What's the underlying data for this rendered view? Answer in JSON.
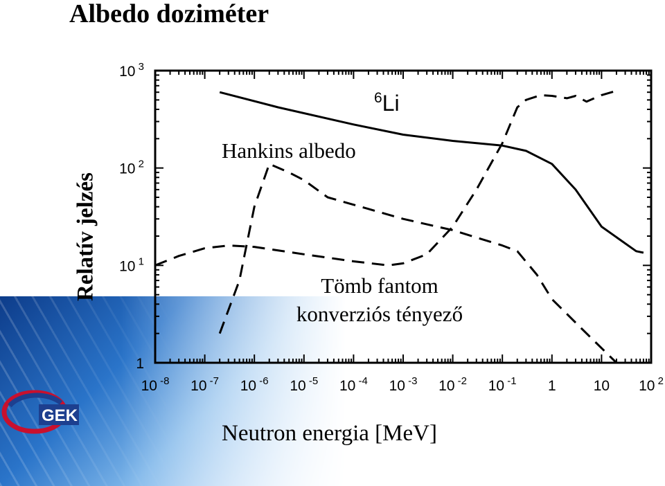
{
  "slide": {
    "title": "Albedo doziméter"
  },
  "logo": {
    "text": "GEK"
  },
  "chart_data": {
    "type": "line",
    "title": "",
    "xlabel": "Neutron energia [MeV]",
    "ylabel": "Relatív jelzés",
    "x_scale": "log",
    "y_scale": "log",
    "xlim": [
      1e-08,
      100
    ],
    "ylim": [
      1,
      1000
    ],
    "grid": false,
    "x_ticks": [
      {
        "value": 1e-08,
        "base": "10",
        "exp": "-8"
      },
      {
        "value": 1e-07,
        "base": "10",
        "exp": "-7"
      },
      {
        "value": 1e-06,
        "base": "10",
        "exp": "-6"
      },
      {
        "value": 1e-05,
        "base": "10",
        "exp": "-5"
      },
      {
        "value": 0.0001,
        "base": "10",
        "exp": "-4"
      },
      {
        "value": 0.001,
        "base": "10",
        "exp": "-3"
      },
      {
        "value": 0.01,
        "base": "10",
        "exp": "-2"
      },
      {
        "value": 0.1,
        "base": "10",
        "exp": "-1"
      },
      {
        "value": 1,
        "base": "1",
        "exp": ""
      },
      {
        "value": 10,
        "base": "10",
        "exp": ""
      },
      {
        "value": 100,
        "base": "10",
        "exp": "2"
      }
    ],
    "y_ticks": [
      {
        "value": 1,
        "base": "1",
        "exp": ""
      },
      {
        "value": 10,
        "base": "10",
        "exp": "1"
      },
      {
        "value": 100,
        "base": "10",
        "exp": "2"
      },
      {
        "value": 1000,
        "base": "10",
        "exp": "3"
      }
    ],
    "series": [
      {
        "style": "solid",
        "x": [
          2e-07,
          3e-06,
          0.0001,
          0.001,
          0.01,
          0.1,
          0.3,
          1,
          3,
          10,
          50,
          70
        ],
        "y": [
          600,
          420,
          280,
          220,
          190,
          170,
          150,
          110,
          60,
          25,
          14,
          13.5
        ]
      },
      {
        "style": "dashed",
        "x": [
          1e-08,
          3e-08,
          1e-07,
          3e-07,
          1e-06,
          1e-05,
          0.0001,
          0.0005,
          0.001,
          0.003,
          0.01,
          0.03,
          0.1,
          0.2,
          0.3,
          0.6,
          1,
          2,
          3,
          5,
          10,
          20
        ],
        "y": [
          10,
          12.5,
          15,
          16,
          15.5,
          13,
          11,
          10,
          10.5,
          13,
          25,
          60,
          180,
          420,
          500,
          560,
          550,
          520,
          550,
          480,
          560,
          620
        ]
      },
      {
        "style": "dashed",
        "x": [
          2e-07,
          5e-07,
          1e-06,
          2e-06,
          5e-06,
          1e-05,
          3e-05,
          0.0001,
          0.0002,
          0.001,
          0.01,
          0.1,
          0.2,
          0.5,
          1,
          5,
          20
        ],
        "y": [
          2,
          7,
          40,
          110,
          90,
          75,
          50,
          42,
          38,
          30,
          23,
          16,
          14,
          8,
          4.5,
          2,
          1
        ]
      }
    ],
    "annotations": [
      {
        "text": "Li",
        "prefix": "6",
        "near_series": 0
      },
      {
        "text": "Hankins albedo"
      },
      {
        "text": "Tömb fantom"
      },
      {
        "text": "konverziós tényező"
      }
    ]
  }
}
